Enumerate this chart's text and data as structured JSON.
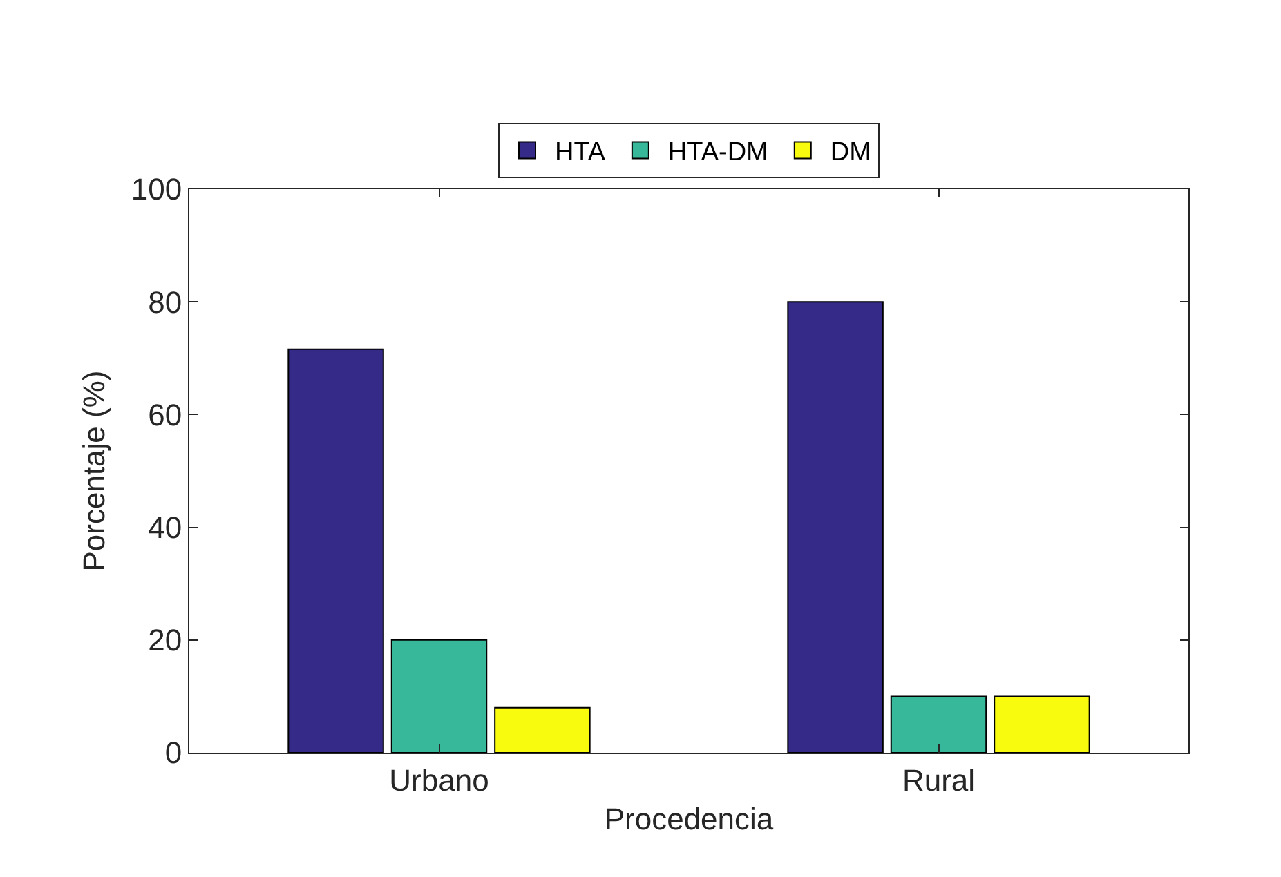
{
  "chart_data": {
    "type": "bar",
    "xlabel": "Procedencia",
    "ylabel": "Porcentaje (%)",
    "categories": [
      "Urbano",
      "Rural"
    ],
    "series": [
      {
        "name": "HTA",
        "color": "#352a87",
        "values": [
          71.6,
          80
        ]
      },
      {
        "name": "HTA-DM",
        "color": "#38b89b",
        "values": [
          20,
          10
        ]
      },
      {
        "name": "DM",
        "color": "#f9fb0e",
        "values": [
          8,
          10
        ]
      }
    ],
    "ylim": [
      0,
      100
    ],
    "yticks": [
      0,
      20,
      40,
      60,
      80,
      100
    ],
    "grid": false,
    "legend": "top"
  }
}
